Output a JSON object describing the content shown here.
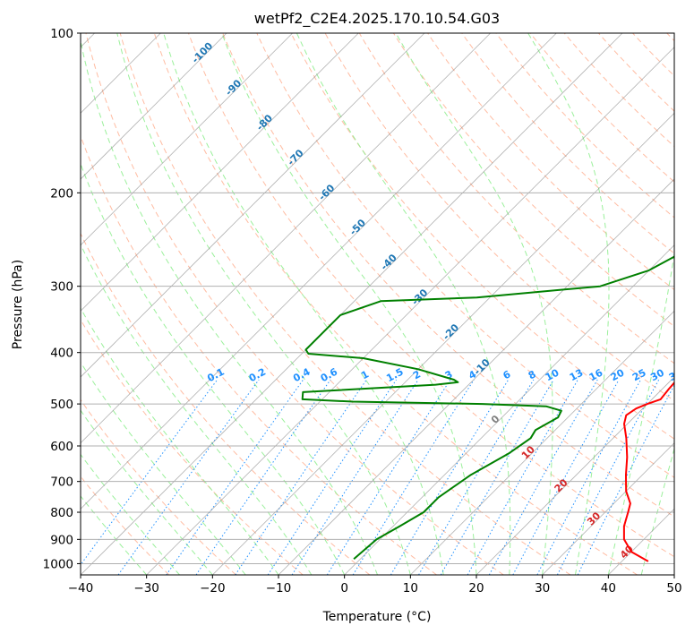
{
  "chart_data": {
    "type": "line",
    "title": "wetPf2_C2E4.2025.170.10.54.G03",
    "xlabel": "Temperature (°C)",
    "ylabel": "Pressure (hPa)",
    "xlim": [
      -40,
      50
    ],
    "ylim": [
      1050,
      100
    ],
    "y_scale": "log",
    "x_ticks": [
      -40,
      -30,
      -20,
      -10,
      0,
      10,
      20,
      30,
      40,
      50
    ],
    "y_ticks": [
      100,
      200,
      300,
      400,
      500,
      600,
      700,
      800,
      900,
      1000
    ],
    "grid": true,
    "series": [
      {
        "color": "#ff0000",
        "points": [
          [
            1.5,
            100
          ],
          [
            2,
            115
          ],
          [
            3,
            130
          ],
          [
            4.5,
            150
          ],
          [
            6.5,
            170
          ],
          [
            8.5,
            190
          ],
          [
            10.5,
            215
          ],
          [
            13,
            245
          ],
          [
            15.5,
            270
          ],
          [
            17.5,
            295
          ],
          [
            19,
            320
          ],
          [
            19.5,
            350
          ],
          [
            20.5,
            380
          ],
          [
            20.8,
            400
          ],
          [
            20.2,
            425
          ],
          [
            20.8,
            450
          ],
          [
            21,
            470
          ],
          [
            21.3,
            490
          ],
          [
            20,
            500
          ],
          [
            19,
            510
          ],
          [
            18.5,
            525
          ],
          [
            19.5,
            545
          ],
          [
            22,
            580
          ],
          [
            25,
            630
          ],
          [
            27.5,
            680
          ],
          [
            30,
            730
          ],
          [
            32.5,
            770
          ],
          [
            33.5,
            800
          ],
          [
            35,
            850
          ],
          [
            37,
            900
          ],
          [
            40,
            950
          ],
          [
            44,
            990
          ]
        ]
      },
      {
        "color": "#008000",
        "points": [
          [
            1.5,
            100
          ],
          [
            1.2,
            110
          ],
          [
            1.5,
            118
          ],
          [
            0.5,
            126
          ],
          [
            1,
            140
          ],
          [
            3,
            155
          ],
          [
            3.5,
            165
          ],
          [
            5.5,
            175
          ],
          [
            6.5,
            185
          ],
          [
            6,
            200
          ],
          [
            5.5,
            215
          ],
          [
            4.5,
            230
          ],
          [
            2.5,
            245
          ],
          [
            2.2,
            260
          ],
          [
            0,
            280
          ],
          [
            -5,
            300
          ],
          [
            -22,
            315
          ],
          [
            -36,
            320
          ],
          [
            -40,
            340
          ],
          [
            -40,
            395
          ],
          [
            -39,
            402
          ],
          [
            -30,
            410
          ],
          [
            -20,
            430
          ],
          [
            -13,
            450
          ],
          [
            -12,
            455
          ],
          [
            -15,
            460
          ],
          [
            -34,
            475
          ],
          [
            -33,
            490
          ],
          [
            -25,
            495
          ],
          [
            -5,
            500
          ],
          [
            5,
            505
          ],
          [
            8,
            515
          ],
          [
            8.5,
            530
          ],
          [
            7,
            560
          ],
          [
            7.5,
            580
          ],
          [
            6.5,
            620
          ],
          [
            4,
            680
          ],
          [
            2.5,
            750
          ],
          [
            2.5,
            800
          ],
          [
            1,
            850
          ],
          [
            -0.5,
            900
          ],
          [
            -1,
            980
          ]
        ]
      }
    ],
    "isotherm_labels": [
      "0",
      "10",
      "20",
      "30",
      "40"
    ],
    "moist_adiabat_labels": [
      "-100",
      "-90",
      "-80",
      "-70",
      "-60",
      "-50",
      "-40",
      "-30",
      "-20",
      "-10"
    ],
    "mixing_ratio_labels": [
      "0.1",
      "0.2",
      "0.4",
      "0.6",
      "1",
      "1.5",
      "2",
      "3",
      "4",
      "6",
      "8",
      "10",
      "13",
      "16",
      "20",
      "25",
      "30",
      "36"
    ],
    "colors": {
      "temperature": "#ff0000",
      "dewpoint": "#008000",
      "isotherm_label": "#d62728",
      "moist_label": "#1f77b4",
      "mixing_label": "#1e90ff",
      "dry_adiabat": "#ffa07a",
      "moist_adiabat": "#90ee90",
      "mixing_ratio": "#1e90ff",
      "isotherm": "#808080"
    }
  }
}
